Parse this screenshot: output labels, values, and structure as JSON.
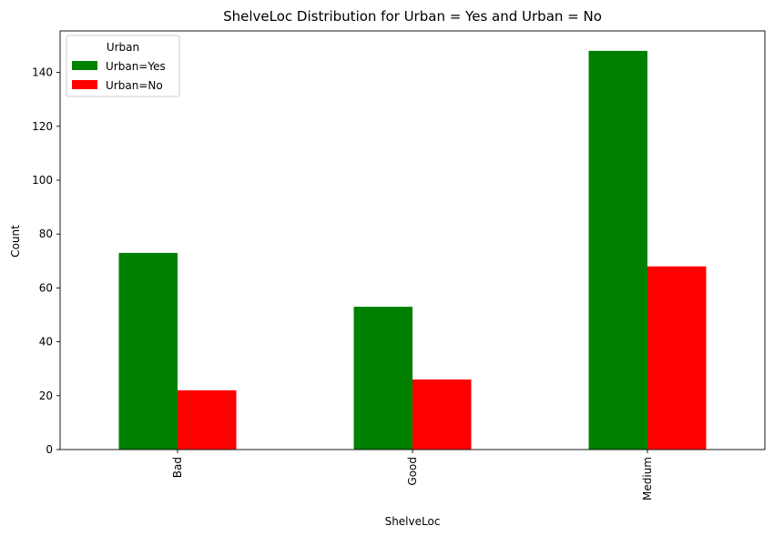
{
  "chart_data": {
    "type": "bar",
    "title": "ShelveLoc Distribution for Urban = Yes and Urban = No",
    "xlabel": "ShelveLoc",
    "ylabel": "Count",
    "categories": [
      "Bad",
      "Good",
      "Medium"
    ],
    "series": [
      {
        "name": "Urban=Yes",
        "values": [
          73,
          53,
          148
        ],
        "color": "#008000"
      },
      {
        "name": "Urban=No",
        "values": [
          22,
          26,
          68
        ],
        "color": "#ff0000"
      }
    ],
    "ylim": [
      0,
      155.4
    ],
    "yticks": [
      0,
      20,
      40,
      60,
      80,
      100,
      120,
      140
    ],
    "grid": false,
    "legend": {
      "title": "Urban",
      "placement": "top-left"
    }
  }
}
